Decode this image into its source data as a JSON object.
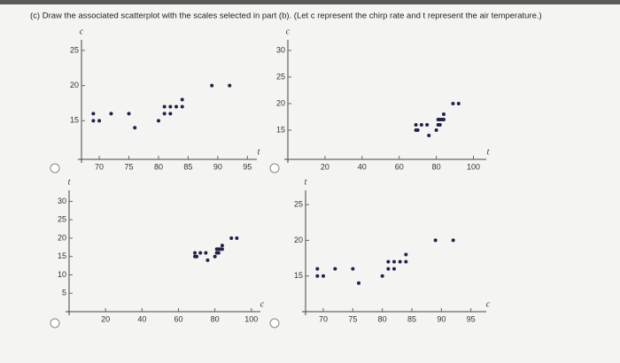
{
  "question": "(c) Draw the associated scatterplot with the scales selected in part (b). (Let c represent the chirp rate and t represent the air temperature.)",
  "chart_data": [
    {
      "type": "scatter",
      "x_label": "t",
      "y_label": "c",
      "color": "#22224a",
      "x": [
        69,
        70,
        69,
        72,
        75,
        76,
        80,
        81,
        81,
        82,
        83,
        84,
        84,
        82,
        89,
        92
      ],
      "values": [
        15,
        15,
        16,
        16,
        16,
        14,
        15,
        16,
        17,
        17,
        17,
        17,
        18,
        16,
        20,
        20
      ],
      "xlim": [
        67,
        96
      ],
      "ylim": [
        9.5,
        26.5
      ],
      "xticks": [
        70,
        75,
        80,
        85,
        90,
        95
      ],
      "yticks": [
        15,
        20,
        25
      ]
    },
    {
      "type": "scatter",
      "x_label": "t",
      "y_label": "c",
      "color": "#22224a",
      "x": [
        69,
        70,
        69,
        72,
        75,
        76,
        80,
        81,
        81,
        82,
        83,
        84,
        84,
        82,
        89,
        92
      ],
      "values": [
        15,
        15,
        16,
        16,
        16,
        14,
        15,
        16,
        17,
        17,
        17,
        17,
        18,
        16,
        20,
        20
      ],
      "xlim": [
        0,
        105
      ],
      "ylim": [
        9.5,
        32
      ],
      "xticks": [
        20,
        40,
        60,
        80,
        100
      ],
      "yticks": [
        15,
        20,
        25,
        30
      ]
    },
    {
      "type": "scatter",
      "x_label": "c",
      "y_label": "t",
      "color": "#22224a",
      "x": [
        69,
        70,
        69,
        72,
        75,
        76,
        80,
        81,
        81,
        82,
        83,
        84,
        84,
        82,
        89,
        92
      ],
      "values": [
        15,
        15,
        16,
        16,
        16,
        14,
        15,
        16,
        17,
        17,
        17,
        17,
        18,
        16,
        20,
        20
      ],
      "xlim": [
        0,
        103
      ],
      "ylim": [
        0,
        33
      ],
      "xticks": [
        20,
        40,
        60,
        80,
        100
      ],
      "yticks": [
        5,
        10,
        15,
        20,
        25,
        30
      ]
    },
    {
      "type": "scatter",
      "x_label": "c",
      "y_label": "t",
      "color": "#22224a",
      "x": [
        69,
        70,
        69,
        72,
        75,
        76,
        80,
        81,
        81,
        82,
        83,
        84,
        84,
        82,
        89,
        92
      ],
      "values": [
        15,
        15,
        16,
        16,
        16,
        14,
        15,
        16,
        17,
        17,
        17,
        17,
        18,
        16,
        20,
        20
      ],
      "xlim": [
        67,
        97
      ],
      "ylim": [
        10,
        27
      ],
      "xticks": [
        70,
        75,
        80,
        85,
        90,
        95
      ],
      "yticks": [
        15,
        20,
        25
      ]
    }
  ]
}
